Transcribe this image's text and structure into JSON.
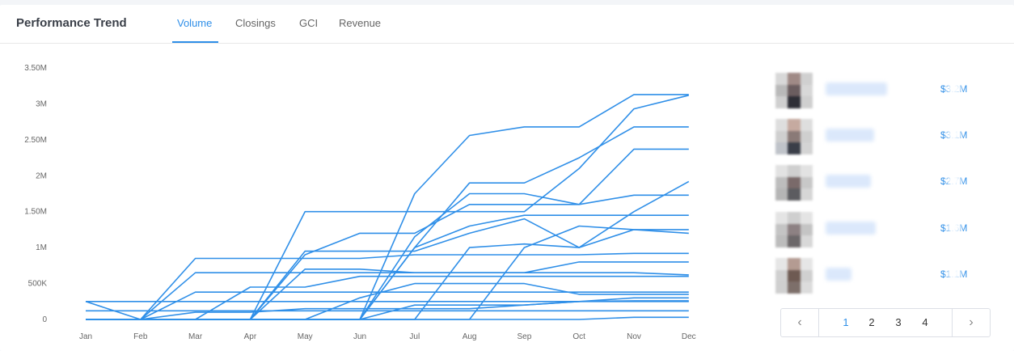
{
  "title": "Performance Trend",
  "tabs": [
    {
      "label": "Volume",
      "active": true
    },
    {
      "label": "Closings",
      "active": false
    },
    {
      "label": "GCI",
      "active": false
    },
    {
      "label": "Revenue",
      "active": false
    }
  ],
  "accent_color": "#2f8fe8",
  "chart_data": {
    "type": "line",
    "categories": [
      "Jan",
      "Feb",
      "Mar",
      "Apr",
      "May",
      "Jun",
      "Jul",
      "Aug",
      "Sep",
      "Oct",
      "Nov",
      "Dec"
    ],
    "ytick_labels": [
      "0",
      "500K",
      "1M",
      "1.50M",
      "2M",
      "2.50M",
      "3M",
      "3.50M"
    ],
    "ylim": [
      0,
      3500000
    ],
    "grid": false,
    "legend": "none",
    "series": [
      {
        "values": [
          0,
          0,
          0,
          0,
          0,
          0,
          1750000,
          2560000,
          2680000,
          2680000,
          3130000,
          3130000
        ]
      },
      {
        "values": [
          0,
          0,
          0,
          0,
          1500000,
          1500000,
          1500000,
          1500000,
          1500000,
          2100000,
          2930000,
          3120000
        ]
      },
      {
        "values": [
          0,
          0,
          0,
          0,
          0,
          0,
          1000000,
          1900000,
          1900000,
          2250000,
          2680000,
          2680000
        ]
      },
      {
        "values": [
          0,
          0,
          0,
          0,
          0,
          0,
          1150000,
          1750000,
          1750000,
          1600000,
          2370000,
          2370000
        ]
      },
      {
        "values": [
          0,
          0,
          0,
          0,
          0,
          0,
          0,
          1000000,
          1050000,
          1000000,
          1500000,
          1920000
        ]
      },
      {
        "values": [
          0,
          0,
          0,
          0,
          900000,
          1200000,
          1200000,
          1600000,
          1600000,
          1600000,
          1730000,
          1730000
        ]
      },
      {
        "values": [
          0,
          0,
          0,
          0,
          0,
          0,
          1000000,
          1300000,
          1450000,
          1450000,
          1450000,
          1450000
        ]
      },
      {
        "values": [
          0,
          0,
          0,
          0,
          950000,
          950000,
          950000,
          1200000,
          1400000,
          1000000,
          1250000,
          1250000
        ]
      },
      {
        "values": [
          0,
          0,
          0,
          0,
          0,
          0,
          0,
          0,
          1000000,
          1300000,
          1250000,
          1200000
        ]
      },
      {
        "values": [
          250000,
          0,
          850000,
          850000,
          850000,
          850000,
          900000,
          900000,
          900000,
          900000,
          920000,
          920000
        ]
      },
      {
        "values": [
          0,
          0,
          650000,
          650000,
          650000,
          650000,
          650000,
          650000,
          650000,
          800000,
          800000,
          800000
        ]
      },
      {
        "values": [
          0,
          0,
          0,
          0,
          700000,
          700000,
          650000,
          650000,
          650000,
          650000,
          650000,
          620000
        ]
      },
      {
        "values": [
          0,
          0,
          0,
          450000,
          450000,
          600000,
          600000,
          600000,
          600000,
          600000,
          600000,
          600000
        ]
      },
      {
        "values": [
          0,
          0,
          0,
          0,
          0,
          300000,
          500000,
          500000,
          500000,
          350000,
          350000,
          350000
        ]
      },
      {
        "values": [
          0,
          0,
          380000,
          380000,
          380000,
          380000,
          380000,
          380000,
          380000,
          380000,
          380000,
          380000
        ]
      },
      {
        "values": [
          0,
          0,
          0,
          0,
          0,
          0,
          200000,
          200000,
          200000,
          250000,
          300000,
          300000
        ]
      },
      {
        "values": [
          250000,
          250000,
          250000,
          250000,
          250000,
          250000,
          250000,
          250000,
          250000,
          250000,
          260000,
          260000
        ]
      },
      {
        "values": [
          0,
          0,
          100000,
          100000,
          150000,
          150000,
          150000,
          150000,
          200000,
          250000,
          250000,
          250000
        ]
      },
      {
        "values": [
          120000,
          120000,
          120000,
          120000,
          120000,
          120000,
          120000,
          120000,
          120000,
          120000,
          120000,
          120000
        ]
      },
      {
        "values": [
          0,
          0,
          0,
          0,
          0,
          0,
          0,
          0,
          0,
          0,
          30000,
          30000
        ]
      }
    ]
  },
  "leaderboard": [
    {
      "value": "$3.2M",
      "avatar_colors": [
        "#d8d8d8",
        "#a08a86",
        "#d0d0d0",
        "#b9b9b9",
        "#6b5d5f",
        "#d8d8d8",
        "#cfcfcf",
        "#2e2e36",
        "#cfcfcf"
      ]
    },
    {
      "value": "$3.1M",
      "avatar_colors": [
        "#dedede",
        "#c6aaa0",
        "#dedede",
        "#cfcfcf",
        "#8a7a77",
        "#cfcfcf",
        "#bfc3c9",
        "#3a3e48",
        "#d4d4d4"
      ]
    },
    {
      "value": "$2.7M",
      "avatar_colors": [
        "#e2e2e2",
        "#cfcfcf",
        "#e2e2e2",
        "#bdbdbd",
        "#7a6a6a",
        "#c8c8c8",
        "#b5b5b5",
        "#5c5c60",
        "#d6d6d6"
      ]
    },
    {
      "value": "$1.6M",
      "avatar_colors": [
        "#e4e4e4",
        "#cfcfcf",
        "#e4e4e4",
        "#c4c4c4",
        "#8d8183",
        "#c4c4c4",
        "#bcbcbc",
        "#6c6769",
        "#d8d8d8"
      ]
    },
    {
      "value": "$1.1M",
      "avatar_colors": [
        "#e6e6e6",
        "#b49b92",
        "#e6e6e6",
        "#d0d0d0",
        "#6e5a52",
        "#d0d0d0",
        "#cfcfcf",
        "#7d6f6a",
        "#dcdcdc"
      ]
    }
  ],
  "pagination": {
    "prev_icon": "‹",
    "next_icon": "›",
    "pages": [
      "1",
      "2",
      "3",
      "4"
    ],
    "current": "1"
  }
}
